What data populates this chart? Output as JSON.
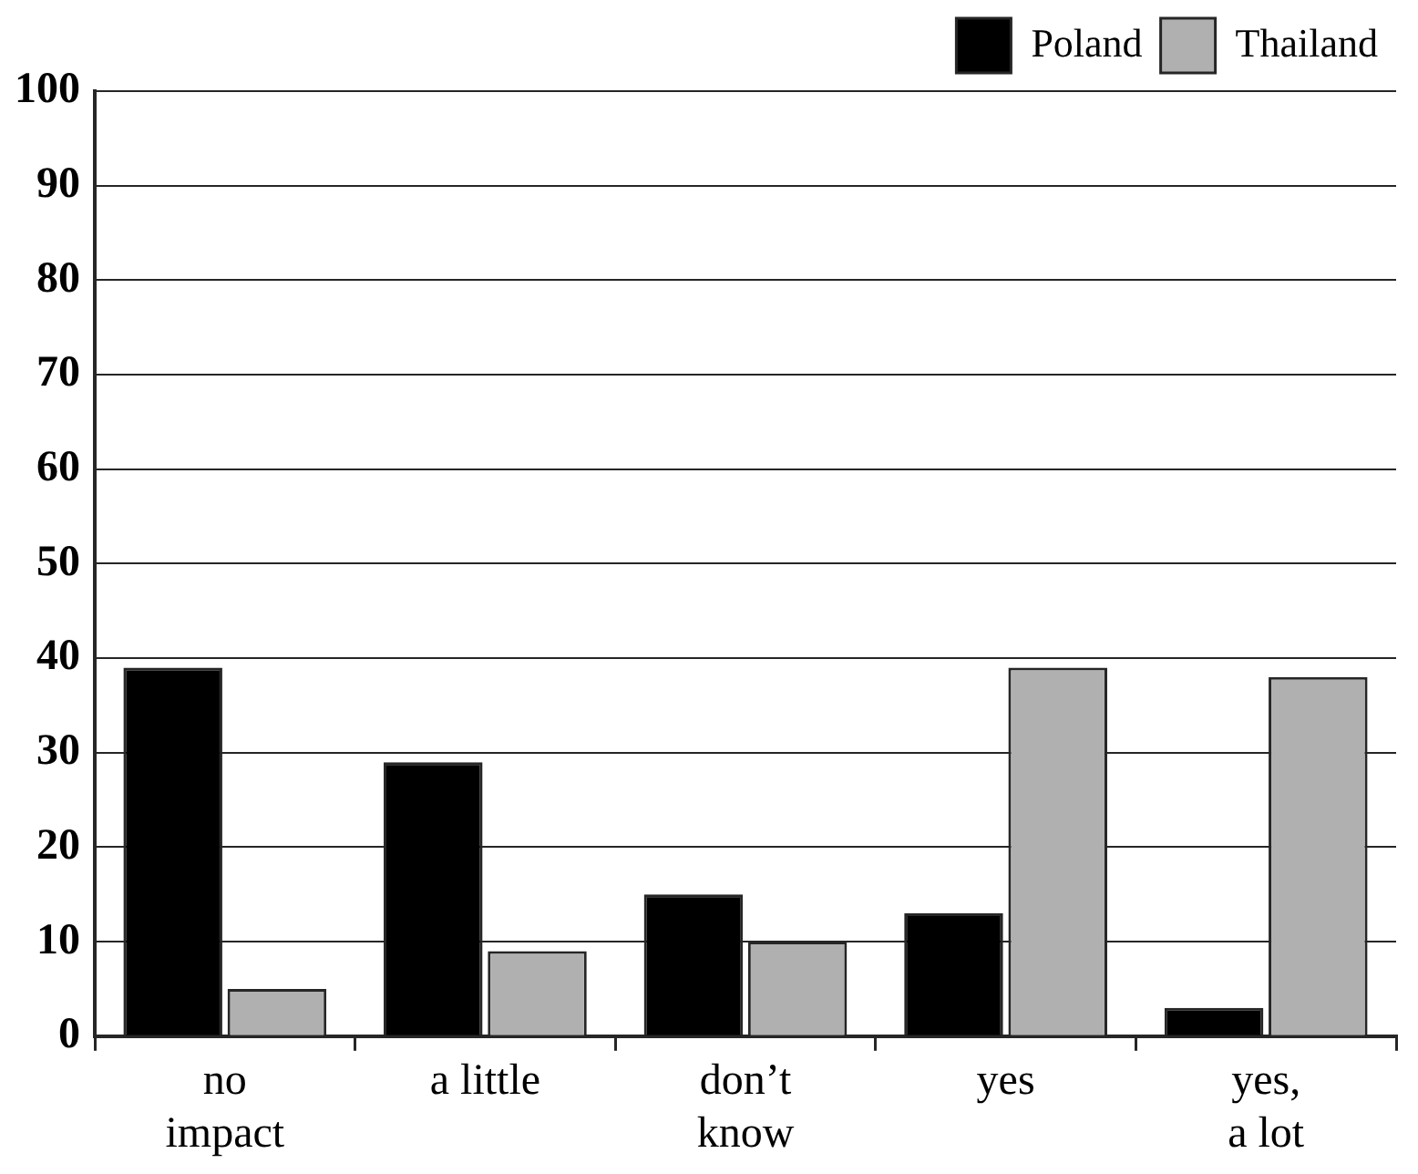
{
  "chart_data": {
    "type": "bar",
    "categories": [
      "no\nimpact",
      "a little",
      "don’t\nknow",
      "yes",
      "yes,\na lot"
    ],
    "series": [
      {
        "name": "Poland",
        "color": "#000000",
        "values": [
          39,
          29,
          15,
          13,
          3
        ]
      },
      {
        "name": "Thailand",
        "color": "#b0b0b0",
        "values": [
          5,
          9,
          10,
          39,
          38
        ]
      }
    ],
    "ylim": [
      0,
      100
    ],
    "yticks": [
      0,
      10,
      20,
      30,
      40,
      50,
      60,
      70,
      80,
      90,
      100
    ],
    "grid": "y",
    "legend": "top right"
  }
}
